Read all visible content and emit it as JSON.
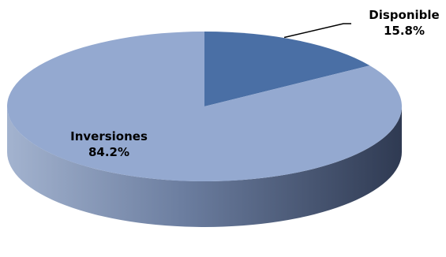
{
  "chart_data": {
    "type": "pie",
    "three_d": true,
    "legend": "none",
    "title": "",
    "start_angle": "top",
    "direction": "clockwise",
    "slices": [
      {
        "label": "Disponible",
        "value": 15.8,
        "value_label": "15.8%",
        "color": "#4A6FA5"
      },
      {
        "label": "Inversiones",
        "value": 84.2,
        "value_label": "84.2%",
        "color": "#94A9D0"
      }
    ]
  }
}
